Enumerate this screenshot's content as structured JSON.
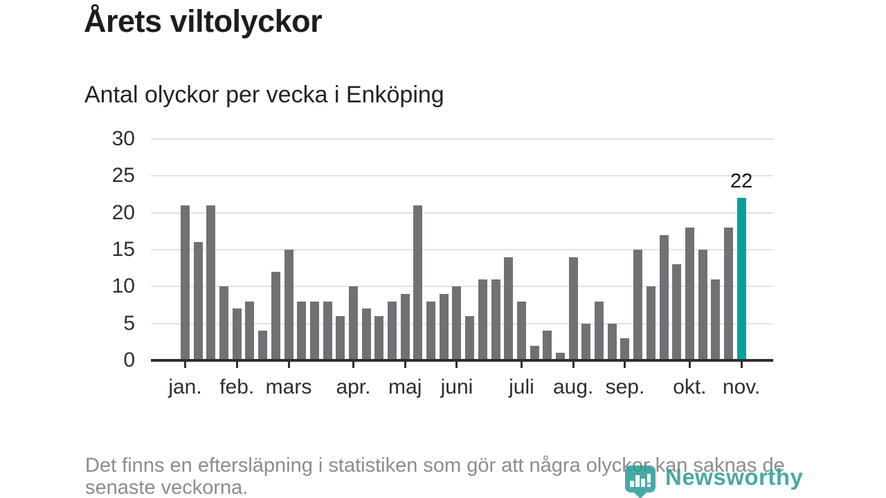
{
  "header": {
    "title": "Årets viltolyckor",
    "subtitle": "Antal olyckor per vecka i Enköping"
  },
  "chart_data": {
    "type": "bar",
    "title": "Årets viltolyckor",
    "subtitle": "Antal olyckor per vecka i Enköping",
    "ylabel": "Antal olyckor per vecka",
    "xlabel": "",
    "ylim": [
      0,
      30
    ],
    "grid": true,
    "y_ticks": [
      0,
      5,
      10,
      15,
      20,
      25,
      30
    ],
    "values": [
      21,
      16,
      21,
      10,
      7,
      8,
      4,
      12,
      15,
      8,
      8,
      8,
      6,
      10,
      7,
      6,
      8,
      9,
      21,
      8,
      9,
      10,
      6,
      11,
      11,
      14,
      8,
      2,
      4,
      1,
      14,
      5,
      8,
      5,
      3,
      15,
      10,
      17,
      13,
      18,
      15,
      11,
      18,
      22
    ],
    "x_tick_labels": [
      "jan.",
      "feb.",
      "mars",
      "apr.",
      "maj",
      "juni",
      "juli",
      "aug.",
      "sep.",
      "okt.",
      "nov."
    ],
    "x_tick_bar_indices": [
      0,
      4,
      8,
      13,
      17,
      21,
      26,
      30,
      34,
      39,
      43
    ],
    "highlight": {
      "index": 43,
      "value": 22,
      "label": "22"
    },
    "colors": {
      "bar": "#717074",
      "highlight": "#00a19a",
      "gridline": "#e2e2e2",
      "axis": "#2f2f2f"
    }
  },
  "footer": {
    "lines": [
      "Det finns en eftersläpning i statistiken som gör att några olyckor kan saknas de",
      "senaste veckorna."
    ]
  },
  "logo": {
    "text": "Newsworthy",
    "color": "#2f9e98"
  }
}
